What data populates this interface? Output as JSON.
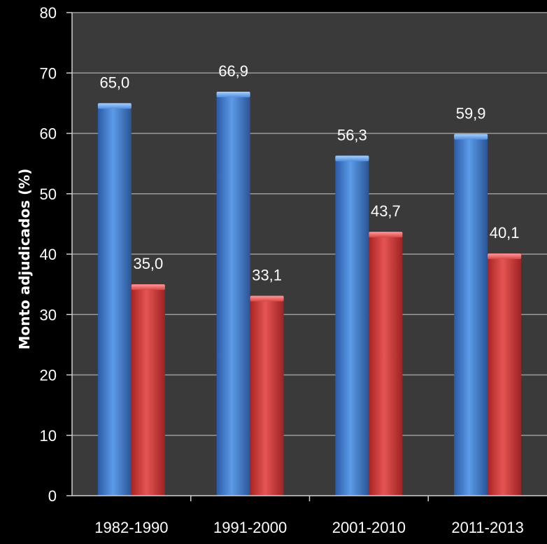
{
  "chart_data": {
    "type": "bar",
    "title": "",
    "xlabel": "",
    "ylabel": "Monto adjudicados  (%)",
    "categories": [
      "1982-1990",
      "1991-2000",
      "2001-2010",
      "2011-2013"
    ],
    "ylim": [
      0,
      80
    ],
    "yticks": [
      0,
      10,
      20,
      30,
      40,
      50,
      60,
      70,
      80
    ],
    "grid": true,
    "legend": "none",
    "series": [
      {
        "values": [
          65.0,
          66.9,
          56.3,
          59.9
        ],
        "labels": [
          "65,0",
          "66,9",
          "56,3",
          "59,9"
        ],
        "color": "#3f7fd6"
      },
      {
        "values": [
          35.0,
          33.1,
          43.7,
          40.1
        ],
        "labels": [
          "35,0",
          "33,1",
          "43,7",
          "40,1"
        ],
        "color": "#d63a3a"
      }
    ],
    "colors": {
      "background": "#000000",
      "plot_area": "#3a3a3a",
      "grid": "#9a9a9a",
      "text": "#ffffff"
    }
  }
}
